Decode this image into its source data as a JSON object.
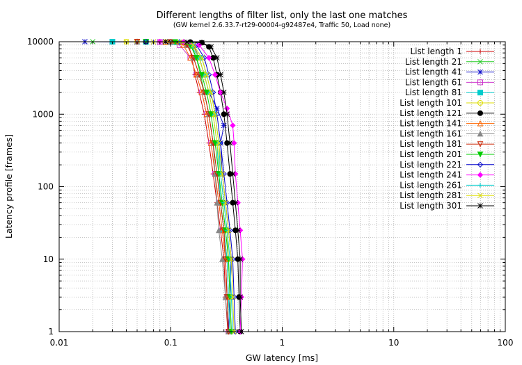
{
  "chart_data": {
    "type": "line",
    "title": "Different lengths of filter list, only the last one matches",
    "subtitle": "(GW kernel 2.6.33.7-rt29-00004-g92487e4, Traffic 50, Load none)",
    "xlabel": "GW latency [ms]",
    "ylabel": "Latency profile [frames]",
    "xscale": "log",
    "yscale": "log",
    "xlim": [
      0.01,
      100
    ],
    "ylim": [
      1,
      10000
    ],
    "x_ticks": [
      "0.01",
      "0.1",
      "1",
      "10",
      "100"
    ],
    "y_ticks": [
      "1",
      "10",
      "100",
      "1000",
      "10000"
    ],
    "grid": true,
    "legend_position": "top-right",
    "series": [
      {
        "name": "List length 1",
        "color": "#cc0000",
        "marker": "plus",
        "x": [
          0.325,
          0.31,
          0.3,
          0.28,
          0.26,
          0.24,
          0.22,
          0.2,
          0.18,
          0.165,
          0.155,
          0.145,
          0.13
        ],
        "y": [
          1,
          3,
          10,
          25,
          60,
          150,
          400,
          1000,
          2000,
          3500,
          6000,
          9000,
          10000
        ]
      },
      {
        "name": "List length 21",
        "color": "#22cc22",
        "marker": "cross",
        "x": [
          0.34,
          0.33,
          0.32,
          0.3,
          0.28,
          0.26,
          0.24,
          0.22,
          0.2,
          0.185,
          0.17,
          0.155,
          0.14,
          0.1,
          0.06,
          0.03,
          0.02
        ],
        "y": [
          1,
          3,
          10,
          25,
          60,
          150,
          400,
          1000,
          2000,
          3500,
          6000,
          8500,
          9800,
          9900,
          9950,
          10000,
          10000
        ]
      },
      {
        "name": "List length 41",
        "color": "#1111cc",
        "marker": "star",
        "x": [
          0.33,
          0.34,
          0.35,
          0.33,
          0.31,
          0.29,
          0.28,
          0.3,
          0.26,
          0.22,
          0.2,
          0.18,
          0.16,
          0.12,
          0.07,
          0.03,
          0.017
        ],
        "y": [
          1,
          3,
          10,
          25,
          60,
          150,
          400,
          700,
          1200,
          2000,
          3500,
          6000,
          9000,
          9800,
          9900,
          9950,
          10000
        ]
      },
      {
        "name": "List length 61",
        "color": "#cc33cc",
        "marker": "square",
        "x": [
          0.33,
          0.32,
          0.31,
          0.29,
          0.27,
          0.25,
          0.23,
          0.21,
          0.19,
          0.17,
          0.15,
          0.12,
          0.08,
          0.03
        ],
        "y": [
          1,
          3,
          10,
          25,
          60,
          150,
          400,
          1000,
          2000,
          3500,
          6000,
          9000,
          9900,
          10000
        ]
      },
      {
        "name": "List length 81",
        "color": "#00cccc",
        "marker": "square-filled",
        "x": [
          0.34,
          0.33,
          0.32,
          0.3,
          0.28,
          0.27,
          0.26,
          0.24,
          0.22,
          0.2,
          0.18,
          0.15,
          0.11,
          0.06,
          0.03
        ],
        "y": [
          1,
          3,
          10,
          25,
          60,
          150,
          400,
          1000,
          2000,
          3500,
          6000,
          9000,
          9900,
          9950,
          10000
        ]
      },
      {
        "name": "List length 101",
        "color": "#dddd00",
        "marker": "circle",
        "x": [
          0.35,
          0.34,
          0.33,
          0.32,
          0.3,
          0.28,
          0.26,
          0.24,
          0.22,
          0.2,
          0.18,
          0.16,
          0.13,
          0.09,
          0.05,
          0.04
        ],
        "y": [
          1,
          3,
          10,
          25,
          60,
          150,
          400,
          1000,
          2000,
          3500,
          6000,
          8500,
          9700,
          9900,
          9950,
          10000
        ]
      },
      {
        "name": "List length 121",
        "color": "#000000",
        "marker": "circle-filled",
        "x": [
          0.42,
          0.41,
          0.4,
          0.38,
          0.36,
          0.34,
          0.32,
          0.3,
          0.28,
          0.26,
          0.24,
          0.22,
          0.19,
          0.15,
          0.1,
          0.06
        ],
        "y": [
          1,
          3,
          10,
          25,
          60,
          150,
          400,
          1000,
          2000,
          3500,
          6000,
          8500,
          9700,
          9900,
          9950,
          10000
        ]
      },
      {
        "name": "List length 141",
        "color": "#ff6600",
        "marker": "triangle",
        "x": [
          0.33,
          0.32,
          0.31,
          0.29,
          0.27,
          0.25,
          0.23,
          0.21,
          0.19,
          0.17,
          0.15,
          0.13,
          0.09,
          0.05
        ],
        "y": [
          1,
          3,
          10,
          25,
          60,
          150,
          400,
          1000,
          2000,
          3500,
          6000,
          9000,
          9900,
          10000
        ]
      },
      {
        "name": "List length 161",
        "color": "#888888",
        "marker": "triangle-filled",
        "x": [
          0.33,
          0.31,
          0.29,
          0.27,
          0.26,
          0.25,
          0.24,
          0.22,
          0.2,
          0.18,
          0.16,
          0.14,
          0.1,
          0.05
        ],
        "y": [
          1,
          3,
          10,
          25,
          60,
          150,
          400,
          1000,
          2000,
          3500,
          6000,
          9000,
          9900,
          10000
        ]
      },
      {
        "name": "List length 181",
        "color": "#cc2200",
        "marker": "triangle-down",
        "x": [
          0.33,
          0.32,
          0.31,
          0.3,
          0.28,
          0.26,
          0.24,
          0.22,
          0.2,
          0.18,
          0.16,
          0.14,
          0.1,
          0.05
        ],
        "y": [
          1,
          3,
          10,
          25,
          60,
          150,
          400,
          1000,
          2000,
          3500,
          6000,
          9000,
          9900,
          10000
        ]
      },
      {
        "name": "List length 201",
        "color": "#00cc00",
        "marker": "triangle-down-filled",
        "x": [
          0.35,
          0.34,
          0.33,
          0.31,
          0.29,
          0.27,
          0.25,
          0.23,
          0.21,
          0.19,
          0.17,
          0.15,
          0.11,
          0.06
        ],
        "y": [
          1,
          3,
          10,
          25,
          60,
          150,
          400,
          1000,
          2000,
          3500,
          6000,
          9000,
          9900,
          10000
        ]
      },
      {
        "name": "List length 221",
        "color": "#0000cc",
        "marker": "diamond",
        "x": [
          0.38,
          0.37,
          0.36,
          0.34,
          0.32,
          0.3,
          0.28,
          0.26,
          0.24,
          0.22,
          0.2,
          0.17,
          0.12,
          0.06
        ],
        "y": [
          1,
          3,
          10,
          25,
          60,
          150,
          400,
          1000,
          2000,
          3500,
          6000,
          9000,
          9900,
          10000
        ]
      },
      {
        "name": "List length 241",
        "color": "#ff00ff",
        "marker": "diamond-filled",
        "x": [
          0.42,
          0.43,
          0.44,
          0.42,
          0.4,
          0.38,
          0.37,
          0.36,
          0.32,
          0.28,
          0.25,
          0.22,
          0.18,
          0.13,
          0.08
        ],
        "y": [
          1,
          3,
          10,
          25,
          60,
          150,
          400,
          700,
          1200,
          2000,
          3500,
          6000,
          9000,
          9900,
          10000
        ]
      },
      {
        "name": "List length 261",
        "color": "#00cccc",
        "marker": "plus",
        "x": [
          0.36,
          0.35,
          0.34,
          0.32,
          0.3,
          0.28,
          0.27,
          0.25,
          0.23,
          0.21,
          0.19,
          0.16,
          0.12,
          0.06
        ],
        "y": [
          1,
          3,
          10,
          25,
          60,
          150,
          400,
          1000,
          2000,
          3500,
          6000,
          9000,
          9900,
          10000
        ]
      },
      {
        "name": "List length 281",
        "color": "#dddd00",
        "marker": "cross",
        "x": [
          0.37,
          0.36,
          0.35,
          0.33,
          0.31,
          0.29,
          0.27,
          0.25,
          0.23,
          0.21,
          0.19,
          0.16,
          0.12,
          0.07,
          0.04
        ],
        "y": [
          1,
          3,
          10,
          25,
          60,
          150,
          400,
          1000,
          2000,
          3500,
          6000,
          9000,
          9900,
          9950,
          10000
        ]
      },
      {
        "name": "List length 301",
        "color": "#000000",
        "marker": "star",
        "x": [
          0.43,
          0.42,
          0.42,
          0.4,
          0.38,
          0.36,
          0.34,
          0.32,
          0.3,
          0.28,
          0.26,
          0.23,
          0.19,
          0.14,
          0.09
        ],
        "y": [
          1,
          3,
          10,
          25,
          60,
          150,
          400,
          1000,
          2000,
          3500,
          6000,
          8500,
          9700,
          9900,
          10000
        ]
      }
    ]
  }
}
